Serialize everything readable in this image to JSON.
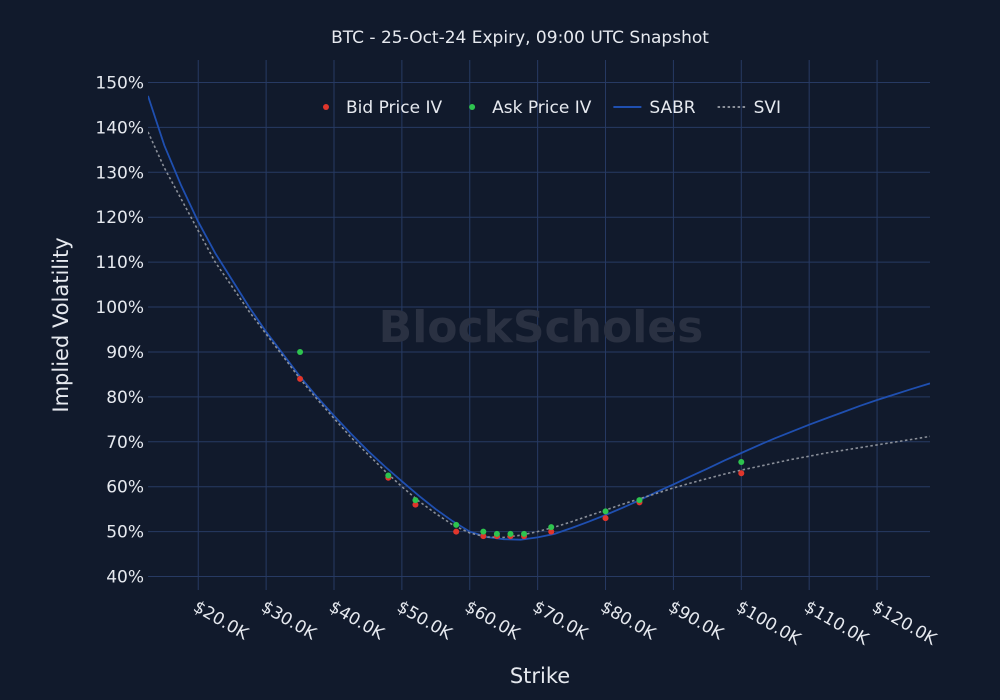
{
  "chart_data": {
    "type": "line",
    "title": "BTC - 25-Oct-24 Expiry, 09:00 UTC Snapshot",
    "xlabel": "Strike",
    "ylabel": "Implied Volatility",
    "watermark": "BlockScholes",
    "xlim": [
      12600,
      127800
    ],
    "ylim": [
      0.37,
      1.55
    ],
    "x_ticks": [
      20000,
      30000,
      40000,
      50000,
      60000,
      70000,
      80000,
      90000,
      100000,
      110000,
      120000
    ],
    "x_tick_labels": [
      "$20.0K",
      "$30.0K",
      "$40.0K",
      "$50.0K",
      "$60.0K",
      "$70.0K",
      "$80.0K",
      "$90.0K",
      "$100.0K",
      "$110.0K",
      "$120.0K"
    ],
    "y_ticks": [
      0.4,
      0.5,
      0.6,
      0.7,
      0.8,
      0.9,
      1.0,
      1.1,
      1.2,
      1.3,
      1.4,
      1.5
    ],
    "y_tick_labels": [
      "40%",
      "50%",
      "60%",
      "70%",
      "80%",
      "90%",
      "100%",
      "110%",
      "120%",
      "130%",
      "140%",
      "150%"
    ],
    "grid": true,
    "legend_position": "top-center",
    "colors": {
      "background": "#111a2c",
      "grid": "#273a63",
      "text": "#e6e9ef",
      "bid": "#e0362c",
      "ask": "#2ec44f",
      "sabr": "#1f4fb0",
      "svi": "#8a8f99",
      "watermark": "#2a3142"
    },
    "series": [
      {
        "name": "Bid Price IV",
        "kind": "scatter",
        "color": "#e0362c",
        "x": [
          35000,
          48000,
          52000,
          58000,
          62000,
          64000,
          66000,
          68000,
          72000,
          80000,
          85000,
          100000
        ],
        "y": [
          0.84,
          0.62,
          0.56,
          0.5,
          0.49,
          0.49,
          0.49,
          0.49,
          0.5,
          0.53,
          0.565,
          0.63
        ]
      },
      {
        "name": "Ask Price IV",
        "kind": "scatter",
        "color": "#2ec44f",
        "x": [
          35000,
          48000,
          52000,
          58000,
          62000,
          64000,
          66000,
          68000,
          72000,
          80000,
          85000,
          100000
        ],
        "y": [
          0.9,
          0.625,
          0.57,
          0.515,
          0.5,
          0.495,
          0.495,
          0.495,
          0.51,
          0.545,
          0.57,
          0.655
        ]
      },
      {
        "name": "SABR",
        "kind": "line",
        "color": "#1f4fb0",
        "dash": "solid",
        "x": [
          12600,
          15000,
          17500,
          20000,
          22500,
          25000,
          27500,
          30000,
          32500,
          35000,
          37500,
          40000,
          42500,
          45000,
          47500,
          50000,
          52500,
          55000,
          57500,
          60000,
          62500,
          65000,
          67500,
          70000,
          72500,
          75000,
          77500,
          80000,
          82500,
          85000,
          87500,
          90000,
          92500,
          95000,
          97500,
          100000,
          102500,
          105000,
          107500,
          110000,
          112500,
          115000,
          117500,
          120000,
          122500,
          125000,
          127800
        ],
        "y": [
          1.47,
          1.36,
          1.27,
          1.19,
          1.12,
          1.06,
          1.0,
          0.945,
          0.895,
          0.845,
          0.8,
          0.758,
          0.718,
          0.68,
          0.645,
          0.612,
          0.58,
          0.55,
          0.523,
          0.5,
          0.488,
          0.483,
          0.482,
          0.487,
          0.495,
          0.508,
          0.522,
          0.537,
          0.553,
          0.57,
          0.588,
          0.605,
          0.623,
          0.64,
          0.658,
          0.675,
          0.692,
          0.708,
          0.723,
          0.738,
          0.752,
          0.766,
          0.78,
          0.793,
          0.805,
          0.817,
          0.83
        ]
      },
      {
        "name": "SVI",
        "kind": "line",
        "color": "#8a8f99",
        "dash": "dotted",
        "x": [
          12600,
          15000,
          17500,
          20000,
          22500,
          25000,
          27500,
          30000,
          32500,
          35000,
          37500,
          40000,
          42500,
          45000,
          47500,
          50000,
          52500,
          55000,
          57500,
          60000,
          62500,
          65000,
          67500,
          70000,
          72500,
          75000,
          77500,
          80000,
          82500,
          85000,
          87500,
          90000,
          92500,
          95000,
          97500,
          100000,
          102500,
          105000,
          107500,
          110000,
          112500,
          115000,
          117500,
          120000,
          122500,
          125000,
          127800
        ],
        "y": [
          1.39,
          1.31,
          1.24,
          1.17,
          1.1,
          1.045,
          0.99,
          0.94,
          0.89,
          0.84,
          0.795,
          0.752,
          0.71,
          0.672,
          0.635,
          0.6,
          0.568,
          0.54,
          0.515,
          0.497,
          0.488,
          0.487,
          0.492,
          0.5,
          0.51,
          0.522,
          0.535,
          0.548,
          0.561,
          0.573,
          0.585,
          0.597,
          0.608,
          0.618,
          0.628,
          0.637,
          0.645,
          0.653,
          0.661,
          0.668,
          0.675,
          0.681,
          0.687,
          0.693,
          0.699,
          0.705,
          0.712
        ]
      }
    ]
  }
}
